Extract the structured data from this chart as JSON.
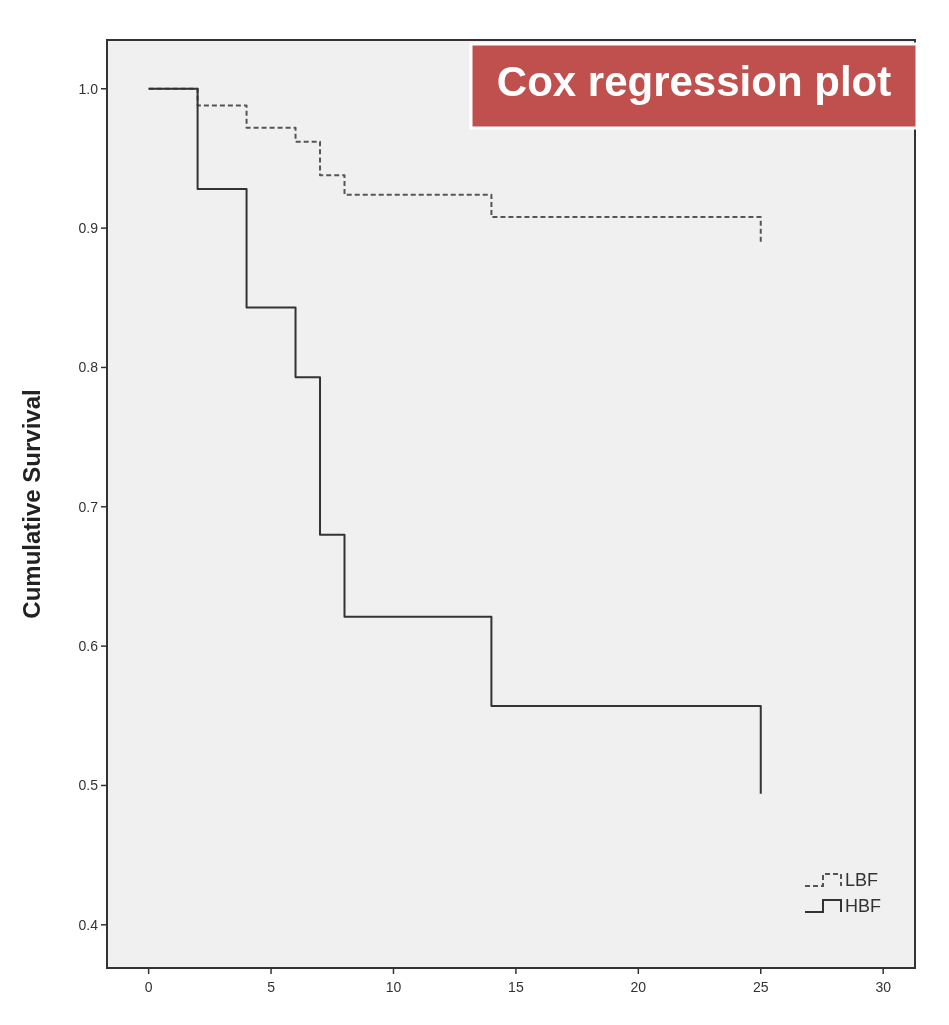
{
  "chart_data": {
    "type": "step",
    "title": "Cox regression plot",
    "ylabel": "Cumulative Survival",
    "xlim": [
      -1.7,
      31.3
    ],
    "xticks": [
      0,
      5,
      10,
      15,
      20,
      25,
      30
    ],
    "ylim": [
      0.369,
      1.035
    ],
    "yticks": [
      {
        "value": 0.4,
        "label": "0.4"
      },
      {
        "value": 0.5,
        "label": "0.5"
      },
      {
        "value": 0.6,
        "label": "0.6"
      },
      {
        "value": 0.7,
        "label": "0.7"
      },
      {
        "value": 0.8,
        "label": "0.8"
      },
      {
        "value": 0.9,
        "label": "0.9"
      },
      {
        "value": 1.0,
        "label": "1.0"
      }
    ],
    "grid": false,
    "legend": "bottom right",
    "series": [
      {
        "name": "LBF",
        "color": "#555555",
        "line_style": "dashed",
        "x": [
          0,
          2,
          4,
          6,
          7,
          8,
          14,
          25
        ],
        "values": [
          1.0,
          0.988,
          0.972,
          0.962,
          0.938,
          0.924,
          0.908,
          0.889
        ]
      },
      {
        "name": "HBF",
        "color": "#333333",
        "line_style": "solid",
        "x": [
          0,
          2,
          4,
          6,
          7,
          8,
          14,
          25
        ],
        "values": [
          1.0,
          0.928,
          0.843,
          0.793,
          0.68,
          0.621,
          0.557,
          0.494
        ]
      }
    ]
  }
}
